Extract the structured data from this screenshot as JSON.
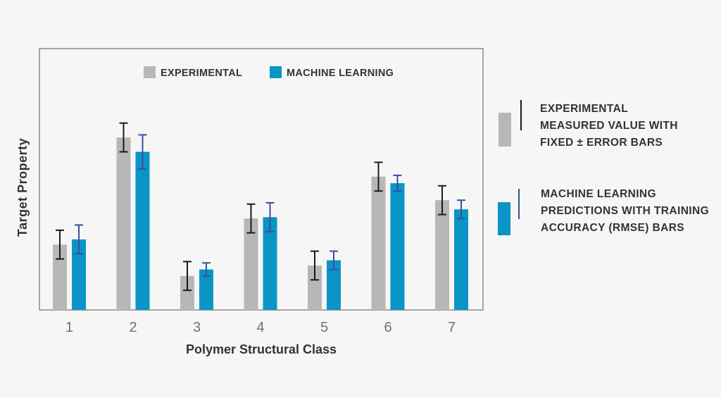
{
  "colors": {
    "experimental": "#b7b7b7",
    "machine_learning": "#0a95c6",
    "experimental_error": "#1a1a1a",
    "ml_error": "#3a4ea0",
    "axis_text": "#6f6f6f",
    "frame": "#8a8a8a"
  },
  "chart_data": {
    "type": "bar",
    "categories": [
      "1",
      "2",
      "3",
      "4",
      "5",
      "6",
      "7"
    ],
    "xlabel": "Polymer Structural Class",
    "ylabel": "Target Property",
    "ylim": [
      0,
      100
    ],
    "yticks_visible": false,
    "grid": false,
    "legend_position": "top-center",
    "series": [
      {
        "name": "EXPERIMENTAL",
        "values": [
          25,
          66,
          13,
          35,
          17,
          51,
          42
        ],
        "error": [
          5.5,
          5.5,
          5.5,
          5.5,
          5.5,
          5.5,
          5.5
        ]
      },
      {
        "name": "MACHINE LEARNING",
        "values": [
          27,
          60.5,
          15.5,
          35.5,
          19,
          48.5,
          38.5
        ],
        "error": [
          5.5,
          6.5,
          2.5,
          5.5,
          3.5,
          3.0,
          3.5
        ]
      }
    ]
  },
  "side_legend": {
    "experimental_lines": [
      "EXPERIMENTAL",
      "MEASURED VALUE WITH",
      "FIXED ± ERROR BARS"
    ],
    "ml_lines": [
      "MACHINE LEARNING",
      "PREDICTIONS WITH TRAINING",
      "ACCURACY (RMSE) BARS"
    ]
  }
}
